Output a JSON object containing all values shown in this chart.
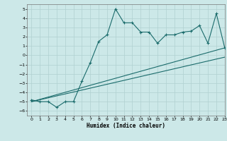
{
  "xlabel": "Humidex (Indice chaleur)",
  "xlim": [
    -0.5,
    23
  ],
  "ylim": [
    -6.5,
    5.5
  ],
  "xticks": [
    0,
    1,
    2,
    3,
    4,
    5,
    6,
    7,
    8,
    9,
    10,
    11,
    12,
    13,
    14,
    15,
    16,
    17,
    18,
    19,
    20,
    21,
    22,
    23
  ],
  "yticks": [
    -6,
    -5,
    -4,
    -3,
    -2,
    -1,
    0,
    1,
    2,
    3,
    4,
    5
  ],
  "bg_color": "#cce8e8",
  "line_color": "#1a6b6b",
  "grid_color": "#b0d0d0",
  "line1_x": [
    0,
    1,
    2,
    3,
    4,
    5,
    6,
    7,
    8,
    9,
    10,
    11,
    12,
    13,
    14,
    15,
    16,
    17,
    18,
    19,
    20,
    21,
    22,
    23
  ],
  "line1_y": [
    -4.8,
    -5.0,
    -5.0,
    -5.6,
    -5.0,
    -5.0,
    -2.8,
    -0.8,
    1.5,
    2.2,
    5.0,
    3.5,
    3.5,
    2.5,
    2.5,
    1.3,
    2.2,
    2.2,
    2.5,
    2.6,
    3.2,
    1.3,
    4.5,
    0.8
  ],
  "line2_x": [
    0,
    23
  ],
  "line2_y": [
    -5.0,
    0.8
  ],
  "line3_x": [
    0,
    23
  ],
  "line3_y": [
    -5.0,
    -0.2
  ],
  "figsize": [
    3.2,
    2.0
  ],
  "dpi": 100
}
